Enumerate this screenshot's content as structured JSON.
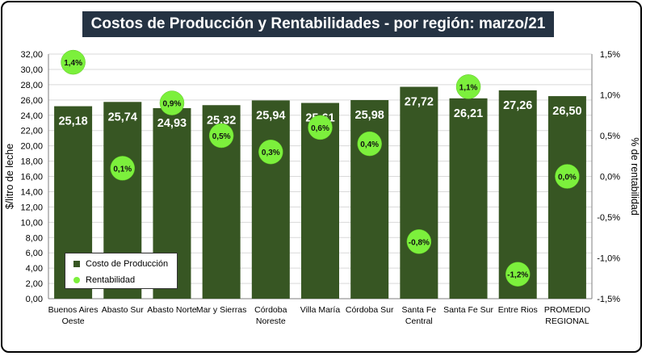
{
  "chart_data": {
    "type": "bar",
    "title": "Costos de Producción y Rentabilidades - por región: marzo/21",
    "categories": [
      [
        "Buenos Aires",
        "Oeste"
      ],
      [
        "Abasto Sur"
      ],
      [
        "Abasto Norte"
      ],
      [
        "Mar y Sierras"
      ],
      [
        "Córdoba",
        "Noreste"
      ],
      [
        "Villa María"
      ],
      [
        "Córdoba Sur"
      ],
      [
        "Santa Fe",
        "Central"
      ],
      [
        "Santa Fe Sur"
      ],
      [
        "Entre Rios"
      ],
      [
        "PROMEDIO",
        "REGIONAL"
      ]
    ],
    "ylabel": "$/litro de leche",
    "y2label": "% de rentabilidad",
    "ylim": [
      0,
      32
    ],
    "y2lim": [
      -1.5,
      1.5
    ],
    "y_ticks": [
      "0,00",
      "2,00",
      "4,00",
      "6,00",
      "8,00",
      "10,00",
      "12,00",
      "14,00",
      "16,00",
      "18,00",
      "20,00",
      "22,00",
      "24,00",
      "26,00",
      "28,00",
      "30,00",
      "32,00"
    ],
    "y2_ticks": [
      "-1,5%",
      "-1,0%",
      "-0,5%",
      "0,0%",
      "0,5%",
      "1,0%",
      "1,5%"
    ],
    "grid": true,
    "series": [
      {
        "name": "Costo de Producción",
        "kind": "bar",
        "color": "#375623",
        "values": [
          25.18,
          25.74,
          24.93,
          25.32,
          25.94,
          25.61,
          25.98,
          27.72,
          26.21,
          27.26,
          26.5
        ],
        "labels": [
          "25,18",
          "25,74",
          "24,93",
          "25,32",
          "25,94",
          "25,61",
          "25,98",
          "27,72",
          "26,21",
          "27,26",
          "26,50"
        ]
      },
      {
        "name": "Rentabilidad",
        "kind": "point",
        "axis": "secondary",
        "color": "#7CF03C",
        "values": [
          1.4,
          0.1,
          0.9,
          0.5,
          0.3,
          0.6,
          0.4,
          -0.8,
          1.1,
          -1.2,
          0.0
        ],
        "labels": [
          "1,4%",
          "0,1%",
          "0,9%",
          "0,5%",
          "0,3%",
          "0,6%",
          "0,4%",
          "-0,8%",
          "1,1%",
          "-1,2%",
          "0,0%"
        ]
      }
    ],
    "legend": "bottom-left"
  }
}
